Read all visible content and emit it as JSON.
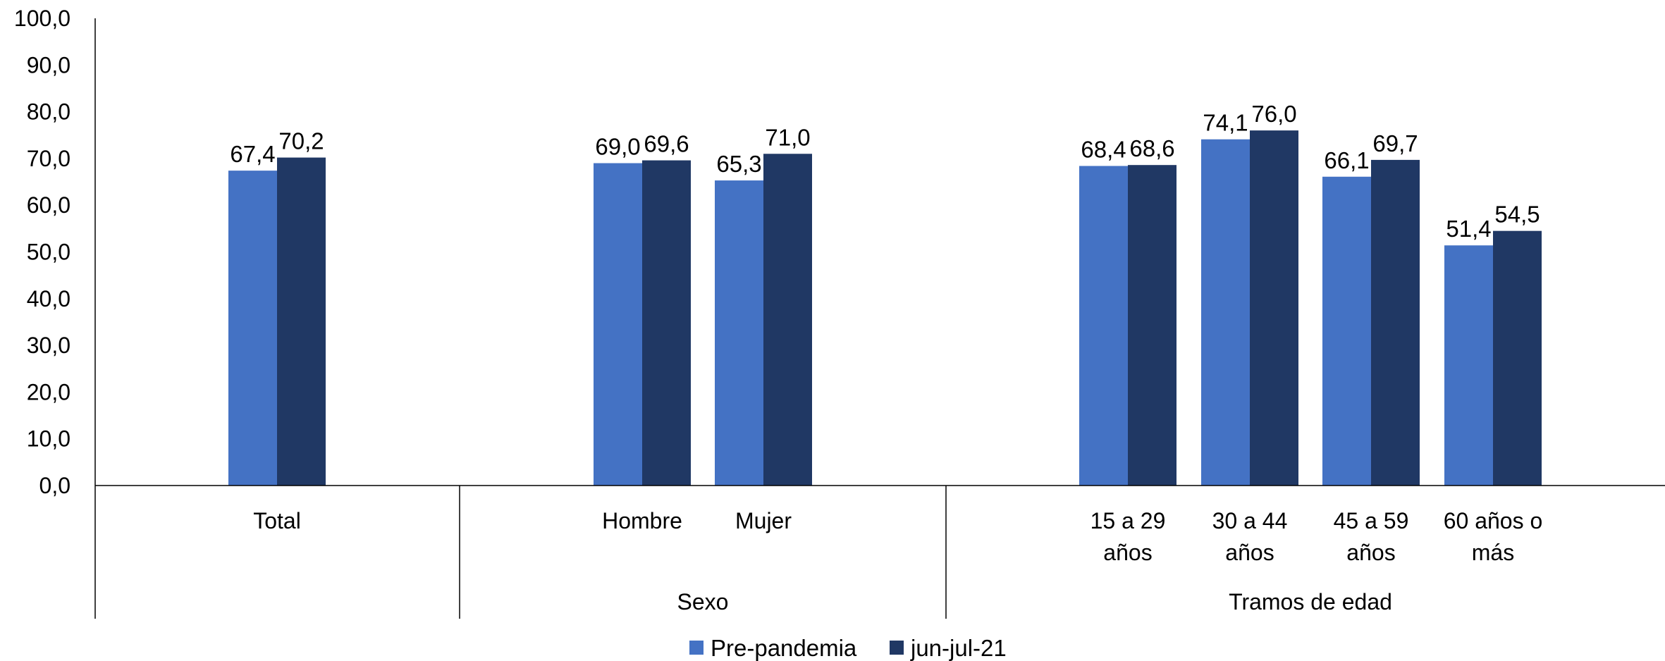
{
  "chart_data": {
    "type": "bar",
    "ylim": [
      0,
      100
    ],
    "yticks": [
      "0,0",
      "10,0",
      "20,0",
      "30,0",
      "40,0",
      "50,0",
      "60,0",
      "70,0",
      "80,0",
      "90,0",
      "100,0"
    ],
    "groups": [
      {
        "label": "",
        "categories": [
          {
            "lines": [
              "Total"
            ]
          }
        ]
      },
      {
        "label": "Sexo",
        "categories": [
          {
            "lines": [
              "Hombre"
            ]
          },
          {
            "lines": [
              "Mujer"
            ]
          }
        ]
      },
      {
        "label": "Tramos de edad",
        "categories": [
          {
            "lines": [
              "15 a 29",
              "años"
            ]
          },
          {
            "lines": [
              "30 a 44",
              "años"
            ]
          },
          {
            "lines": [
              "45 a 59",
              "años"
            ]
          },
          {
            "lines": [
              "60 años o",
              "más"
            ]
          }
        ]
      }
    ],
    "series": [
      {
        "name": "Pre-pandemia",
        "color": "#4472C4",
        "values": [
          67.4,
          69.0,
          65.3,
          68.4,
          74.1,
          66.1,
          51.4
        ],
        "labels": [
          "67,4",
          "69,0",
          "65,3",
          "68,4",
          "74,1",
          "66,1",
          "51,4"
        ]
      },
      {
        "name": "jun-jul-21",
        "color": "#203864",
        "values": [
          70.2,
          69.6,
          71.0,
          68.6,
          76.0,
          69.7,
          54.5
        ],
        "labels": [
          "70,2",
          "69,6",
          "71,0",
          "68,6",
          "76,0",
          "69,7",
          "54,5"
        ]
      }
    ],
    "legend_position": "bottom"
  }
}
